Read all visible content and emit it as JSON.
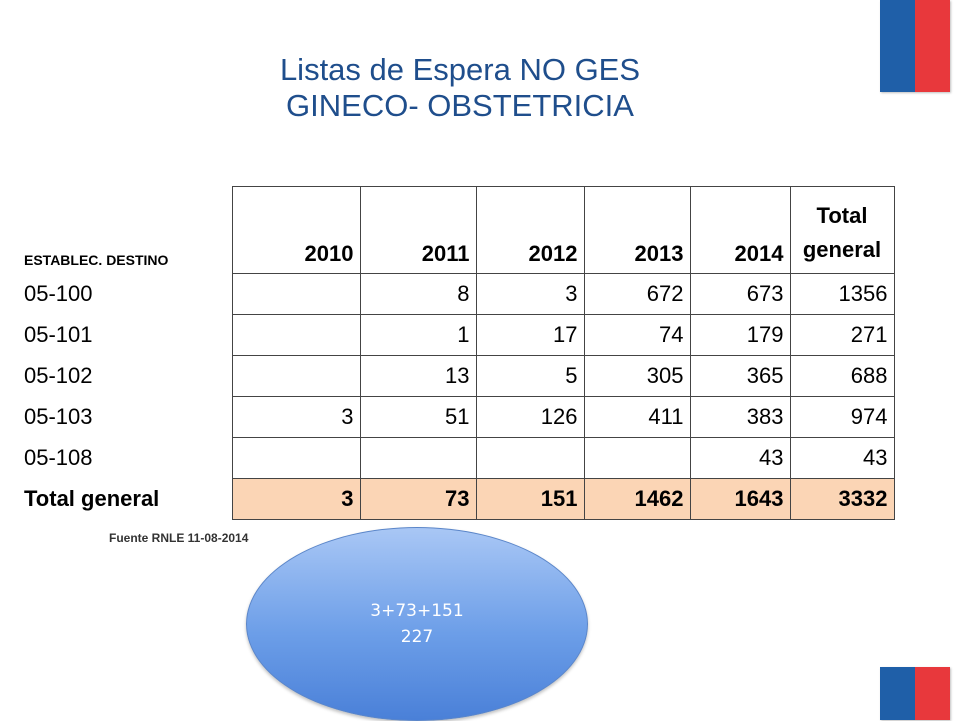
{
  "header": {
    "title_line1": "Listas de Espera NO GES",
    "title_line2": "GINECO- OBSTETRICIA"
  },
  "table": {
    "corner_label": "ESTABLEC. DESTINO",
    "years": [
      "2010",
      "2011",
      "2012",
      "2013",
      "2014"
    ],
    "total_header_line1": "Total",
    "total_header_line2": "general",
    "rows": [
      {
        "label": "05-100",
        "cells": [
          "",
          "8",
          "3",
          "672",
          "673",
          "1356"
        ]
      },
      {
        "label": "05-101",
        "cells": [
          "",
          "1",
          "17",
          "74",
          "179",
          "271"
        ]
      },
      {
        "label": "05-102",
        "cells": [
          "",
          "13",
          "5",
          "305",
          "365",
          "688"
        ]
      },
      {
        "label": "05-103",
        "cells": [
          "3",
          "51",
          "126",
          "411",
          "383",
          "974"
        ]
      },
      {
        "label": "05-108",
        "cells": [
          "",
          "",
          "",
          "",
          "43",
          "43"
        ]
      }
    ],
    "total_row": {
      "label": "Total general",
      "cells": [
        "3",
        "73",
        "151",
        "1462",
        "1643",
        "3332"
      ]
    }
  },
  "source_note": "Fuente RNLE 11-08-2014",
  "callout": {
    "line1": "3+73+151",
    "line2": "227"
  },
  "colors": {
    "title": "#1f4e8c",
    "flag_blue": "#1f5fa8",
    "flag_red": "#e8383c",
    "total_row_bg": "#fbd5b5",
    "callout_fill": "#6c9ee8"
  }
}
